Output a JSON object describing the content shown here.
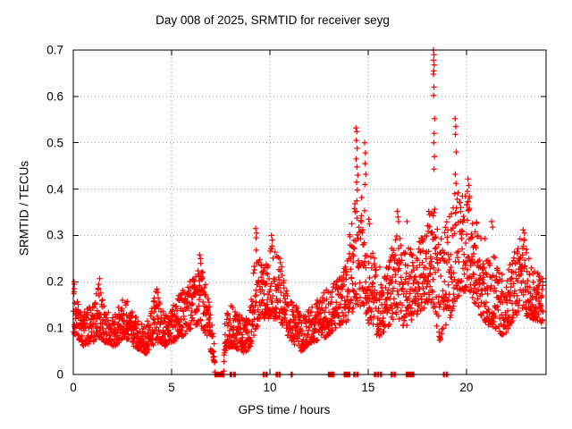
{
  "chart_data": {
    "type": "scatter",
    "title": "Day 008 of 2025, SRMTID for receiver seyg",
    "xlabel": "GPS time / hours",
    "ylabel": "SRMTID / TECUs",
    "xlim": [
      0,
      24.05
    ],
    "ylim": [
      0,
      0.7
    ],
    "xticks": [
      0,
      5,
      10,
      15,
      20
    ],
    "xtick_labels": [
      "0",
      "5",
      "10",
      "15",
      "20"
    ],
    "yticks": [
      0,
      0.1,
      0.2,
      0.3,
      0.4,
      0.5,
      0.6,
      0.7
    ],
    "ytick_labels": [
      "0",
      "0.1",
      "0.2",
      "0.3",
      "0.4",
      "0.5",
      "0.6",
      "0.7"
    ],
    "grid": true,
    "legend_position": "none",
    "marker": "plus",
    "colors": {
      "points": "#ff0000",
      "grid": "#9e9e9e",
      "axis": "#000000",
      "background": "#ffffff",
      "text": "#000000"
    },
    "sampling_step_hours": 0.01,
    "seed": 1367942,
    "envelope_keypoints": [
      [
        0.0,
        0.09,
        0.19
      ],
      [
        0.2,
        0.08,
        0.16
      ],
      [
        0.5,
        0.06,
        0.14
      ],
      [
        1.0,
        0.07,
        0.15
      ],
      [
        1.3,
        0.08,
        0.2
      ],
      [
        1.6,
        0.07,
        0.14
      ],
      [
        2.1,
        0.06,
        0.13
      ],
      [
        2.6,
        0.08,
        0.17
      ],
      [
        3.1,
        0.06,
        0.13
      ],
      [
        3.7,
        0.045,
        0.11
      ],
      [
        4.25,
        0.07,
        0.19
      ],
      [
        4.6,
        0.06,
        0.13
      ],
      [
        5.1,
        0.07,
        0.15
      ],
      [
        5.55,
        0.08,
        0.19
      ],
      [
        6.0,
        0.1,
        0.21
      ],
      [
        6.45,
        0.11,
        0.25
      ],
      [
        6.8,
        0.08,
        0.18
      ],
      [
        7.05,
        0.04,
        0.12
      ],
      [
        7.18,
        0.02,
        0.06
      ],
      [
        7.2,
        0,
        0
      ],
      [
        7.65,
        0,
        0
      ],
      [
        7.7,
        0.05,
        0.12
      ],
      [
        8.1,
        0.06,
        0.16
      ],
      [
        8.5,
        0.05,
        0.13
      ],
      [
        8.9,
        0.045,
        0.12
      ],
      [
        9.3,
        0.1,
        0.29
      ],
      [
        9.7,
        0.12,
        0.24
      ],
      [
        10.1,
        0.12,
        0.28
      ],
      [
        10.5,
        0.12,
        0.26
      ],
      [
        10.9,
        0.08,
        0.18
      ],
      [
        11.6,
        0.05,
        0.13
      ],
      [
        12.2,
        0.07,
        0.15
      ],
      [
        12.8,
        0.08,
        0.18
      ],
      [
        13.3,
        0.09,
        0.2
      ],
      [
        13.8,
        0.1,
        0.23
      ],
      [
        14.15,
        0.13,
        0.33
      ],
      [
        14.45,
        0.15,
        0.4
      ],
      [
        14.8,
        0.14,
        0.38
      ],
      [
        15.1,
        0.1,
        0.3
      ],
      [
        15.5,
        0.08,
        0.23
      ],
      [
        16.0,
        0.1,
        0.25
      ],
      [
        16.5,
        0.12,
        0.31
      ],
      [
        16.9,
        0.1,
        0.28
      ],
      [
        17.3,
        0.12,
        0.27
      ],
      [
        17.8,
        0.14,
        0.3
      ],
      [
        18.1,
        0.16,
        0.33
      ],
      [
        18.35,
        0.14,
        0.38
      ],
      [
        18.6,
        0.07,
        0.28
      ],
      [
        19.0,
        0.1,
        0.33
      ],
      [
        19.45,
        0.16,
        0.4
      ],
      [
        19.8,
        0.18,
        0.39
      ],
      [
        20.15,
        0.18,
        0.4
      ],
      [
        20.5,
        0.14,
        0.33
      ],
      [
        21.0,
        0.11,
        0.29
      ],
      [
        21.4,
        0.1,
        0.27
      ],
      [
        21.9,
        0.08,
        0.21
      ],
      [
        22.4,
        0.12,
        0.28
      ],
      [
        22.9,
        0.13,
        0.3
      ],
      [
        23.3,
        0.12,
        0.24
      ],
      [
        23.9,
        0.11,
        0.21
      ]
    ],
    "spike_points": [
      [
        0.03,
        0.175
      ],
      [
        0.04,
        0.2
      ],
      [
        0.05,
        0.185
      ],
      [
        0.06,
        0.195
      ],
      [
        1.34,
        0.207
      ],
      [
        6.43,
        0.258
      ],
      [
        6.47,
        0.25
      ],
      [
        9.28,
        0.315
      ],
      [
        9.32,
        0.305
      ],
      [
        9.3,
        0.295
      ],
      [
        10.08,
        0.3
      ],
      [
        10.12,
        0.29
      ],
      [
        14.38,
        0.532
      ],
      [
        14.42,
        0.524
      ],
      [
        14.4,
        0.505
      ],
      [
        14.44,
        0.488
      ],
      [
        14.39,
        0.465
      ],
      [
        14.43,
        0.448
      ],
      [
        14.47,
        0.43
      ],
      [
        14.41,
        0.415
      ],
      [
        14.45,
        0.398
      ],
      [
        14.82,
        0.5
      ],
      [
        14.86,
        0.478
      ],
      [
        14.84,
        0.455
      ],
      [
        14.88,
        0.432
      ],
      [
        14.83,
        0.41
      ],
      [
        15.03,
        0.335
      ],
      [
        15.07,
        0.325
      ],
      [
        16.48,
        0.352
      ],
      [
        16.52,
        0.34
      ],
      [
        16.55,
        0.33
      ],
      [
        16.98,
        0.33
      ],
      [
        18.08,
        0.352
      ],
      [
        18.12,
        0.345
      ],
      [
        18.32,
        0.7
      ],
      [
        18.35,
        0.69
      ],
      [
        18.33,
        0.678
      ],
      [
        18.36,
        0.668
      ],
      [
        18.34,
        0.655
      ],
      [
        18.32,
        0.648
      ],
      [
        18.35,
        0.62
      ],
      [
        18.33,
        0.602
      ],
      [
        18.38,
        0.552
      ],
      [
        18.36,
        0.52
      ],
      [
        18.34,
        0.5
      ],
      [
        18.37,
        0.47
      ],
      [
        18.35,
        0.443
      ],
      [
        19.42,
        0.552
      ],
      [
        19.46,
        0.535
      ],
      [
        19.44,
        0.518
      ],
      [
        19.48,
        0.48
      ],
      [
        19.43,
        0.432
      ],
      [
        19.47,
        0.412
      ],
      [
        20.08,
        0.422
      ],
      [
        20.12,
        0.408
      ],
      [
        20.05,
        0.395
      ],
      [
        20.15,
        0.385
      ],
      [
        21.28,
        0.33
      ],
      [
        21.33,
        0.318
      ],
      [
        22.88,
        0.312
      ],
      [
        22.95,
        0.305
      ]
    ],
    "zero_value_clusters": [
      [
        7.2,
        7.66,
        46
      ],
      [
        7.98,
        8.06,
        5
      ],
      [
        8.16,
        8.24,
        4
      ],
      [
        9.66,
        9.72,
        3
      ],
      [
        9.8,
        9.86,
        3
      ],
      [
        10.32,
        10.38,
        3
      ],
      [
        10.46,
        10.52,
        3
      ],
      [
        11.08,
        11.14,
        3
      ],
      [
        12.98,
        13.26,
        22
      ],
      [
        13.78,
        14.06,
        20
      ],
      [
        14.27,
        14.33,
        4
      ],
      [
        14.42,
        14.48,
        4
      ],
      [
        15.32,
        15.38,
        3
      ],
      [
        15.47,
        15.53,
        3
      ],
      [
        15.62,
        15.68,
        3
      ],
      [
        16.17,
        16.23,
        3
      ],
      [
        16.32,
        16.38,
        3
      ],
      [
        16.94,
        17.32,
        28
      ],
      [
        18.83,
        18.88,
        3
      ],
      [
        18.97,
        19.03,
        3
      ]
    ]
  }
}
